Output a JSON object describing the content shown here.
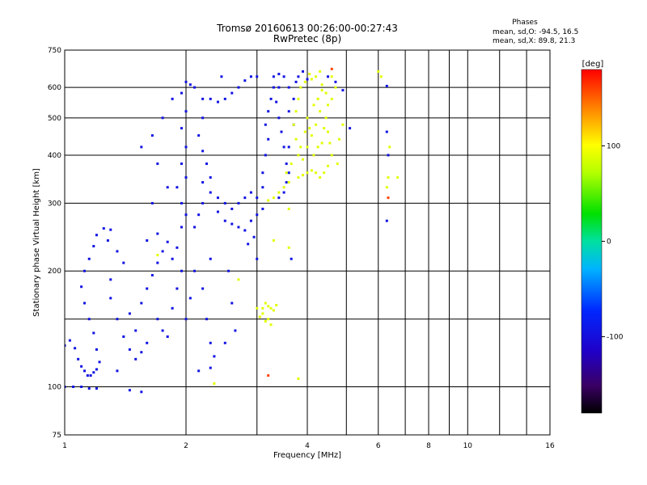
{
  "chart_data": {
    "type": "scatter",
    "title": "Tromsø 20160613 00:26:00-00:27:43",
    "subtitle": "RwPretec (8p)",
    "stats": {
      "heading": "Phases",
      "line_o": "mean, sd,O: -94.5, 16.5",
      "line_x": "mean, sd,X:  89.8, 21.3"
    },
    "xlabel": "Frequency [MHz]",
    "ylabel": "Stationary phase Virtual Height [km]",
    "x_scale": "log",
    "y_scale": "log",
    "xlim": [
      1,
      16
    ],
    "ylim": [
      75,
      750
    ],
    "x_ticks": [
      1,
      2,
      4,
      6,
      8,
      10,
      16
    ],
    "x_tick_labels": [
      "1",
      "2",
      "4",
      "6",
      "8",
      "10",
      "16"
    ],
    "x_minor_ticks": [
      3,
      5,
      7,
      9,
      12,
      14
    ],
    "y_ticks": [
      75,
      100,
      200,
      300,
      400,
      500,
      600,
      750
    ],
    "y_tick_labels": [
      "75",
      "100",
      "200",
      "300",
      "400",
      "500",
      "600",
      "750"
    ],
    "y_minor_ticks": [
      150
    ],
    "grid": true,
    "colorbar": {
      "label": "[deg]",
      "range": [
        -180,
        180
      ],
      "ticks": [
        100,
        0,
        -100
      ],
      "tick_labels": [
        "100",
        "0",
        "-100"
      ]
    },
    "series": [
      {
        "mode": "O",
        "phase_deg": -94.5,
        "points": [
          [
            1.0,
            100
          ],
          [
            1.05,
            100
          ],
          [
            1.1,
            100
          ],
          [
            1.15,
            99
          ],
          [
            1.2,
            99
          ],
          [
            1.0,
            128
          ],
          [
            1.03,
            132
          ],
          [
            1.06,
            126
          ],
          [
            1.08,
            118
          ],
          [
            1.1,
            113
          ],
          [
            1.12,
            110
          ],
          [
            1.14,
            107
          ],
          [
            1.16,
            107
          ],
          [
            1.18,
            109
          ],
          [
            1.2,
            111
          ],
          [
            1.22,
            116
          ],
          [
            1.2,
            125
          ],
          [
            1.18,
            138
          ],
          [
            1.15,
            150
          ],
          [
            1.12,
            165
          ],
          [
            1.1,
            182
          ],
          [
            1.12,
            200
          ],
          [
            1.15,
            215
          ],
          [
            1.18,
            232
          ],
          [
            1.2,
            248
          ],
          [
            1.25,
            258
          ],
          [
            1.3,
            256
          ],
          [
            1.28,
            240
          ],
          [
            1.35,
            225
          ],
          [
            1.4,
            210
          ],
          [
            1.3,
            190
          ],
          [
            1.3,
            170
          ],
          [
            1.35,
            150
          ],
          [
            1.4,
            135
          ],
          [
            1.45,
            125
          ],
          [
            1.5,
            118
          ],
          [
            1.55,
            123
          ],
          [
            1.6,
            130
          ],
          [
            1.5,
            140
          ],
          [
            1.45,
            155
          ],
          [
            1.55,
            165
          ],
          [
            1.6,
            180
          ],
          [
            1.65,
            195
          ],
          [
            1.7,
            210
          ],
          [
            1.75,
            225
          ],
          [
            1.6,
            240
          ],
          [
            1.7,
            250
          ],
          [
            1.8,
            238
          ],
          [
            1.85,
            215
          ],
          [
            1.7,
            150
          ],
          [
            1.75,
            140
          ],
          [
            1.8,
            135
          ],
          [
            1.85,
            160
          ],
          [
            1.9,
            180
          ],
          [
            1.95,
            200
          ],
          [
            1.9,
            230
          ],
          [
            1.95,
            260
          ],
          [
            2.0,
            280
          ],
          [
            1.95,
            300
          ],
          [
            1.9,
            330
          ],
          [
            2.0,
            350
          ],
          [
            1.95,
            380
          ],
          [
            2.0,
            420
          ],
          [
            1.95,
            470
          ],
          [
            2.0,
            520
          ],
          [
            1.95,
            580
          ],
          [
            2.05,
            610
          ],
          [
            2.1,
            600
          ],
          [
            2.0,
            150
          ],
          [
            2.05,
            170
          ],
          [
            2.1,
            200
          ],
          [
            2.2,
            180
          ],
          [
            2.25,
            150
          ],
          [
            2.3,
            130
          ],
          [
            2.3,
            215
          ],
          [
            2.1,
            260
          ],
          [
            2.15,
            280
          ],
          [
            2.2,
            300
          ],
          [
            2.3,
            320
          ],
          [
            2.4,
            310
          ],
          [
            2.5,
            300
          ],
          [
            2.6,
            290
          ],
          [
            2.7,
            300
          ],
          [
            2.8,
            310
          ],
          [
            2.9,
            320
          ],
          [
            2.2,
            340
          ],
          [
            2.3,
            350
          ],
          [
            2.25,
            380
          ],
          [
            2.2,
            410
          ],
          [
            2.15,
            450
          ],
          [
            2.2,
            500
          ],
          [
            2.2,
            560
          ],
          [
            2.3,
            560
          ],
          [
            2.4,
            550
          ],
          [
            2.5,
            560
          ],
          [
            2.6,
            580
          ],
          [
            2.7,
            600
          ],
          [
            2.8,
            625
          ],
          [
            2.9,
            640
          ],
          [
            3.0,
            640
          ],
          [
            2.6,
            265
          ],
          [
            2.7,
            260
          ],
          [
            2.8,
            255
          ],
          [
            2.5,
            270
          ],
          [
            2.4,
            285
          ],
          [
            3.0,
            310
          ],
          [
            3.1,
            330
          ],
          [
            3.1,
            360
          ],
          [
            3.15,
            400
          ],
          [
            3.2,
            440
          ],
          [
            3.15,
            480
          ],
          [
            3.2,
            520
          ],
          [
            3.25,
            560
          ],
          [
            3.3,
            600
          ],
          [
            3.3,
            640
          ],
          [
            3.4,
            650
          ],
          [
            3.5,
            640
          ],
          [
            3.4,
            600
          ],
          [
            3.35,
            550
          ],
          [
            3.4,
            500
          ],
          [
            3.45,
            460
          ],
          [
            3.5,
            420
          ],
          [
            3.55,
            380
          ],
          [
            3.6,
            360
          ],
          [
            3.55,
            340
          ],
          [
            3.5,
            320
          ],
          [
            3.4,
            310
          ],
          [
            3.6,
            420
          ],
          [
            3.7,
            480
          ],
          [
            3.6,
            520
          ],
          [
            3.7,
            560
          ],
          [
            3.6,
            600
          ],
          [
            3.75,
            620
          ],
          [
            3.8,
            640
          ],
          [
            3.9,
            660
          ],
          [
            4.0,
            630
          ],
          [
            3.1,
            290
          ],
          [
            3.0,
            280
          ],
          [
            2.9,
            270
          ],
          [
            2.95,
            245
          ],
          [
            2.85,
            235
          ],
          [
            3.0,
            215
          ],
          [
            3.65,
            215
          ],
          [
            2.55,
            200
          ],
          [
            2.6,
            165
          ],
          [
            2.65,
            140
          ],
          [
            2.5,
            130
          ],
          [
            2.35,
            120
          ],
          [
            2.15,
            110
          ],
          [
            2.3,
            112
          ],
          [
            1.35,
            110
          ],
          [
            1.45,
            98
          ],
          [
            1.55,
            97
          ],
          [
            6.3,
            605
          ],
          [
            6.3,
            460
          ],
          [
            6.3,
            270
          ],
          [
            6.35,
            400
          ],
          [
            4.5,
            640
          ],
          [
            4.7,
            620
          ],
          [
            5.1,
            470
          ],
          [
            4.9,
            590
          ],
          [
            2.45,
            640
          ],
          [
            2.0,
            620
          ],
          [
            1.85,
            560
          ],
          [
            1.75,
            500
          ],
          [
            1.65,
            450
          ],
          [
            1.55,
            420
          ],
          [
            1.7,
            380
          ],
          [
            1.8,
            330
          ],
          [
            1.65,
            300
          ]
        ]
      },
      {
        "mode": "X",
        "phase_deg": 89.8,
        "points": [
          [
            3.8,
            350
          ],
          [
            3.9,
            355
          ],
          [
            4.0,
            360
          ],
          [
            4.1,
            365
          ],
          [
            4.2,
            360
          ],
          [
            4.3,
            350
          ],
          [
            4.4,
            360
          ],
          [
            4.5,
            375
          ],
          [
            4.6,
            400
          ],
          [
            4.55,
            430
          ],
          [
            4.5,
            460
          ],
          [
            4.45,
            500
          ],
          [
            4.5,
            540
          ],
          [
            4.45,
            580
          ],
          [
            4.35,
            610
          ],
          [
            4.2,
            640
          ],
          [
            4.1,
            630
          ],
          [
            3.95,
            620
          ],
          [
            3.85,
            600
          ],
          [
            3.8,
            560
          ],
          [
            3.75,
            520
          ],
          [
            3.7,
            480
          ],
          [
            3.75,
            440
          ],
          [
            3.8,
            400
          ],
          [
            3.9,
            390
          ],
          [
            4.0,
            420
          ],
          [
            4.1,
            450
          ],
          [
            4.2,
            480
          ],
          [
            4.3,
            520
          ],
          [
            4.25,
            560
          ],
          [
            4.0,
            500
          ],
          [
            3.95,
            460
          ],
          [
            4.15,
            400
          ],
          [
            4.35,
            430
          ],
          [
            4.4,
            470
          ],
          [
            4.6,
            560
          ],
          [
            4.7,
            600
          ],
          [
            4.8,
            440
          ],
          [
            4.9,
            480
          ],
          [
            4.75,
            380
          ],
          [
            3.6,
            340
          ],
          [
            3.5,
            330
          ],
          [
            3.4,
            320
          ],
          [
            3.3,
            310
          ],
          [
            3.2,
            305
          ],
          [
            3.55,
            360
          ],
          [
            3.65,
            380
          ],
          [
            4.05,
            650
          ],
          [
            4.3,
            660
          ],
          [
            4.6,
            640
          ],
          [
            6.0,
            660
          ],
          [
            6.1,
            640
          ],
          [
            6.4,
            420
          ],
          [
            6.7,
            350
          ],
          [
            6.3,
            330
          ],
          [
            6.35,
            350
          ],
          [
            3.3,
            240
          ],
          [
            3.6,
            230
          ],
          [
            3.0,
            160
          ],
          [
            3.1,
            155
          ],
          [
            3.15,
            165
          ],
          [
            3.2,
            150
          ],
          [
            3.25,
            160
          ],
          [
            3.3,
            158
          ],
          [
            3.15,
            148
          ],
          [
            3.05,
            152
          ],
          [
            3.25,
            145
          ],
          [
            3.35,
            163
          ],
          [
            3.2,
            162
          ],
          [
            3.1,
            160
          ],
          [
            3.8,
            105
          ],
          [
            2.35,
            102
          ],
          [
            1.7,
            220
          ],
          [
            2.7,
            190
          ],
          [
            3.6,
            290
          ],
          [
            4.15,
            540
          ],
          [
            4.35,
            590
          ],
          [
            3.85,
            420
          ],
          [
            4.05,
            470
          ],
          [
            4.25,
            420
          ]
        ]
      },
      {
        "mode": "spot",
        "phase_deg": 160,
        "points": [
          [
            3.2,
            107
          ],
          [
            6.35,
            310
          ],
          [
            4.6,
            670
          ]
        ]
      }
    ]
  }
}
